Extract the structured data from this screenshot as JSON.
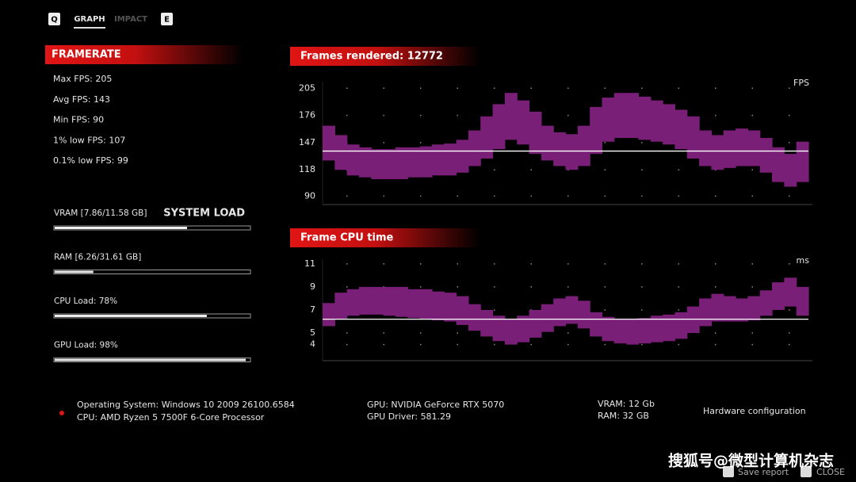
{
  "tabs": {
    "left_key": "Q",
    "active": "GRAPH",
    "inactive": "IMPACT",
    "right_key": "E"
  },
  "framerate": {
    "title": "FRAMERATE",
    "stats": [
      "Max FPS: 205",
      "Avg FPS: 143",
      "Min FPS: 90",
      "1% low FPS: 107",
      "0.1% low FPS: 99"
    ]
  },
  "system_load": {
    "title": "SYSTEM LOAD",
    "meters": [
      {
        "label": "VRAM [7.86/11.58 GB]",
        "used": 7.86,
        "total": 11.58
      },
      {
        "label": "RAM [6.26/31.61 GB]",
        "used": 6.26,
        "total": 31.61
      },
      {
        "label": "CPU Load: 78%",
        "percent": 78
      },
      {
        "label": "GPU Load: 98%",
        "percent": 98
      }
    ]
  },
  "chart_data": [
    {
      "type": "band",
      "title": "Frames rendered: 12772",
      "unit": "FPS",
      "ylim": [
        81,
        212
      ],
      "yticks": [
        205,
        176,
        147,
        118,
        90
      ],
      "grid": true,
      "color": "#7a1f78",
      "average": 138,
      "average_color": "#ffffff",
      "high": [
        165,
        155,
        145,
        142,
        140,
        140,
        142,
        142,
        143,
        145,
        146,
        150,
        160,
        175,
        188,
        200,
        192,
        180,
        165,
        158,
        156,
        165,
        185,
        195,
        200,
        200,
        196,
        192,
        188,
        182,
        175,
        160,
        155,
        160,
        162,
        160,
        152,
        142,
        135,
        148
      ],
      "low": [
        128,
        118,
        112,
        110,
        108,
        108,
        108,
        110,
        110,
        112,
        112,
        115,
        122,
        130,
        140,
        150,
        145,
        135,
        128,
        122,
        118,
        122,
        135,
        148,
        152,
        152,
        150,
        148,
        145,
        140,
        130,
        122,
        118,
        120,
        122,
        122,
        115,
        105,
        100,
        105
      ]
    },
    {
      "type": "band",
      "title": "Frame CPU time",
      "unit": "ms",
      "ylim": [
        2.6,
        11.4
      ],
      "yticks": [
        11,
        9,
        7,
        5,
        4
      ],
      "grid": true,
      "color": "#7a1f78",
      "average": 6.2,
      "average_color": "#ffffff",
      "high": [
        7.6,
        8.5,
        8.8,
        9,
        9,
        9,
        9,
        8.8,
        8.8,
        8.6,
        8.5,
        8.2,
        7.5,
        7,
        6.5,
        6.2,
        6.5,
        7,
        7.5,
        8,
        8.2,
        7.8,
        6.8,
        6.4,
        6.2,
        6.2,
        6.3,
        6.5,
        6.6,
        6.8,
        7.3,
        8,
        8.4,
        8.2,
        8,
        8.2,
        8.7,
        9.4,
        9.8,
        9
      ],
      "low": [
        5.6,
        6.2,
        6.5,
        6.6,
        6.6,
        6.5,
        6.4,
        6.3,
        6.2,
        6.1,
        6,
        5.7,
        5.2,
        4.7,
        4.3,
        4,
        4.2,
        4.6,
        5.1,
        5.6,
        5.8,
        5.4,
        4.7,
        4.3,
        4.1,
        4,
        4.1,
        4.2,
        4.3,
        4.5,
        5,
        5.6,
        6,
        6,
        6,
        6.1,
        6.5,
        7,
        7.3,
        6.5
      ]
    }
  ],
  "hardware": {
    "os": "Operating System: Windows 10 2009 26100.6584",
    "cpu": "CPU: AMD Ryzen 5 7500F 6-Core Processor",
    "gpu": "GPU: NVIDIA GeForce RTX 5070",
    "driver": "GPU Driver: 581.29",
    "vram": "VRAM: 12 Gb",
    "ram": "RAM: 32 GB",
    "title": "Hardware configuration"
  },
  "footer": {
    "save": "Save report",
    "close": "CLOSE",
    "watermark": "搜狐号@微型计算机杂志"
  }
}
